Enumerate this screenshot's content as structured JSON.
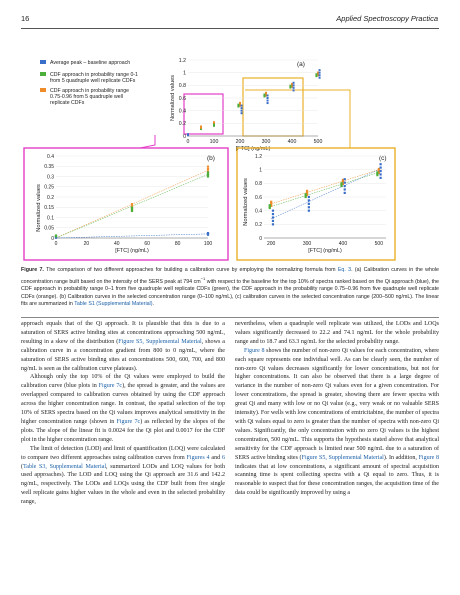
{
  "header": {
    "page_number": "16",
    "journal": "Applied Spectroscopy Practica"
  },
  "figure": {
    "legend": [
      {
        "label": "Average peak – baseline approach",
        "color": "#3a6fc9"
      },
      {
        "label_lines": [
          "CDF approach in probability range 0-1",
          "from 5 quadruple well replicate CDFs"
        ],
        "color": "#4caf3c"
      },
      {
        "label_lines": [
          "CDF approach in probability range",
          "0.75-0.96 from 5 quadruple well",
          "replicate CDFs"
        ],
        "color": "#ef8c2a"
      }
    ],
    "panels": [
      {
        "tag": "(a)",
        "xlabel": "[FTC] (ng/mL)",
        "ylabel": "Normalized values",
        "xticks": [
          "0",
          "100",
          "200",
          "300",
          "400",
          "500"
        ],
        "yticks": [
          "0",
          "0.2",
          "0.4",
          "0.6",
          "0.8",
          "1",
          "1.2"
        ]
      },
      {
        "tag": "(b)",
        "xlabel": "[FTC] (ng/mL)",
        "ylabel": "Normalized values",
        "xticks": [
          "0",
          "20",
          "40",
          "60",
          "80",
          "100"
        ],
        "yticks": [
          "0",
          "0.05",
          "0.1",
          "0.15",
          "0.2",
          "0.25",
          "0.3",
          "0.35",
          "0.4"
        ]
      },
      {
        "tag": "(c)",
        "xlabel": "[FTC] (ng/mL)",
        "ylabel": "Normalized values",
        "xticks": [
          "200",
          "300",
          "400",
          "500"
        ],
        "yticks": [
          "0",
          "0.2",
          "0.4",
          "0.6",
          "0.8",
          "1",
          "1.2"
        ]
      }
    ],
    "colors": {
      "blue": "#3a6fc9",
      "green": "#4caf3c",
      "orange": "#ef8c2a",
      "magenta": "#e43ec8",
      "gold": "#e9b02a"
    }
  },
  "caption": {
    "label": "Figure 7.",
    "p1": "The comparison of two different approaches for building a calibration curve by employing the normalizing formula from ",
    "eq": "Eq. 3",
    "p2": ". (a) Calibration curves in the whole concentration range built based on the intensity of the SERS peak at 794 cm",
    "sup": "−1",
    "p3": " with respect to the baseline for the top 10% of spectra ranked based on the Qi approach (blue), the CDF approach in probability range 0–1 from five quadruple well replicate CDFs (green), the CDF approach in the probability range 0.75–0.96 from five quadruple well replicate CDFs (orange). (b) Calibration curves in the selected concentration range (0–100 ng/mL), (c) calibration curves in the selected concentration range (200–500 ng/mL). The linear fits are summarized in ",
    "table_link": "Table S1 (Supplemental Material)",
    "p4": "."
  },
  "body_left": [
    {
      "indent": false,
      "parts": [
        {
          "t": "approach equals that of the Qi approach. It is plausible that this is due to a saturation of SERS active binding sites at concentrations approaching 500 ng/mL, resulting in a skew of the distribution ("
        },
        {
          "t": "Figure S5, Supplemental Material",
          "link": true
        },
        {
          "t": ", shows a calibration curve in a concentration gradient from 800 to 0 ng/mL, where the saturation of SERS active binding sites at concentrations 500, 600, 700, and 800 ng/mL is seen as the calibration curve plateaus)."
        }
      ]
    },
    {
      "indent": true,
      "parts": [
        {
          "t": "Although only the top 10% of the Qi values were employed to build the calibration curve (blue plots in "
        },
        {
          "t": "Figure 7c",
          "link": true
        },
        {
          "t": "), the spread is greater, and the values are overlapped compared to calibration curves obtained by using the CDF approach across the higher concentration range. In contrast, the spatial selection of the top 10% of SERS spectra based on the Qi values improves analytical sensitivity in the higher concentration range (shown in "
        },
        {
          "t": "Figure 7c",
          "link": true
        },
        {
          "t": ") as reflected by the slopes of the plots. The slope of the linear fit is 0.0024 for the Qi plot and 0.0017 for the CDF plot in the higher concentration range."
        }
      ]
    },
    {
      "indent": true,
      "parts": [
        {
          "t": "The limit of detection (LOD) and limit of quantification (LOQ) were calculated to compare two different approaches using calibration curves from "
        },
        {
          "t": "Figures 4",
          "link": true
        },
        {
          "t": " and "
        },
        {
          "t": "6",
          "link": true
        },
        {
          "t": " ("
        },
        {
          "t": "Table S3, Supplemental Material",
          "link": true
        },
        {
          "t": ", summarized LODs and LOQ values for both used approaches). The LOD and LOQ using the Qi approach are 31.6 and 142.2 ng/mL, respectively. The LODs and LOQs using the CDF built from five single well replicate gains higher values in the whole and even in the selected probability range,"
        }
      ]
    }
  ],
  "body_right": [
    {
      "indent": false,
      "parts": [
        {
          "t": "nevertheless, when a quadruple well replicate was utilized, the LODs and LOQs values significantly decreased to 22.2 and 74.1 ng/mL for the whole probability range and to 18.7 and 63.3 ng/mL for the selected probability range."
        }
      ]
    },
    {
      "indent": true,
      "parts": [
        {
          "t": "Figure 8",
          "link": true
        },
        {
          "t": " shows the number of non-zero Qi values for each concentration, where each square represents one individual well. As can be clearly seen, the number of non-zero Qi values decreases significantly for lower concentrations, but not for higher concentrations. It can also be observed that there is a large degree of variance in the number of non-zero Qi values even for a given concentration. For lower concentrations, the spread is greater, showing there are fewer spectra with great Qi and many with low or no Qi value (e.g., very weak or no valuable SERS intensity). For wells with low concentrations of emtricitabine, the number of spectra with Qi values equal to zero is greater than the number of spectra with non-zero Qi values. Significantly, the only concentration with no zero Qi values is the highest concentration, 500 ng/mL. This supports the hypothesis stated above that analytical sensitivity for the CDF approach is limited near 500 ng/mL due to a saturation of SERS active binding sites ("
        },
        {
          "t": "Figure S5, Supplemental Material",
          "link": true
        },
        {
          "t": "). In addition, "
        },
        {
          "t": "Figure 8",
          "link": true
        },
        {
          "t": " indicates that at low concentrations, a significant amount of spectral acquisition scanning time is spent collecting spectra with a Qi equal to zero. Thus, it is reasonable to suspect that for these concentration ranges, the acquisition time of the data could be significantly improved by using a"
        }
      ]
    }
  ]
}
